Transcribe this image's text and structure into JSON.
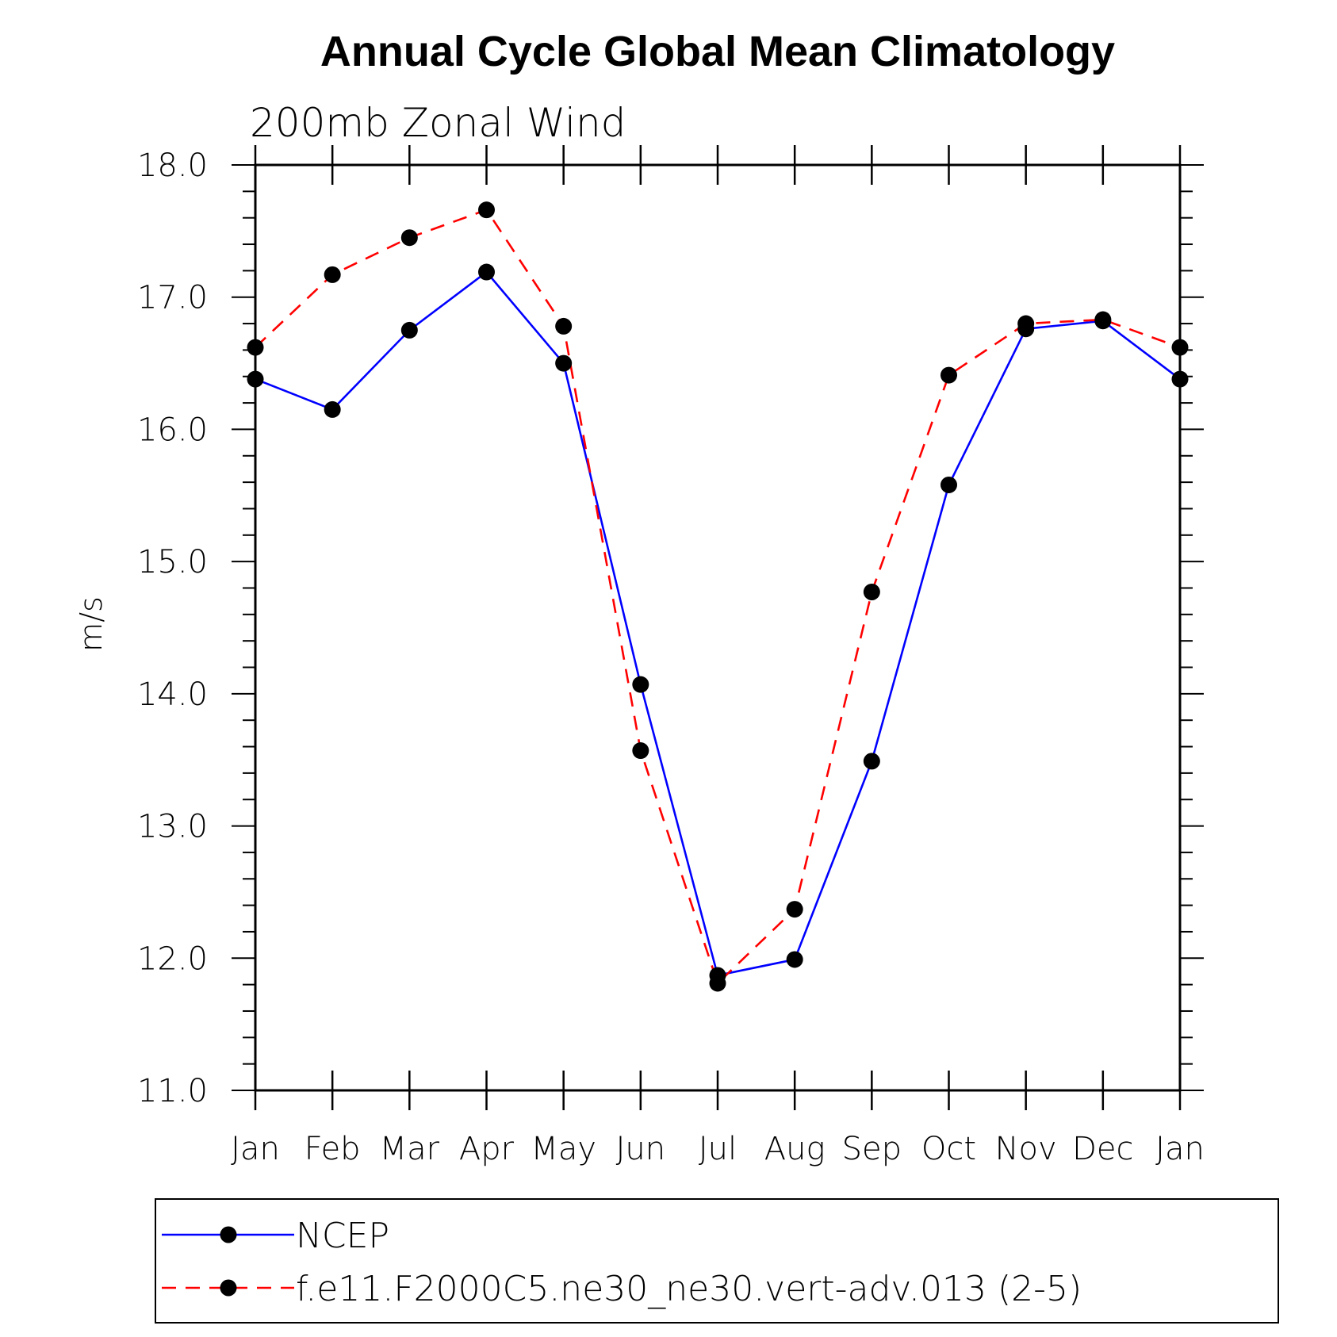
{
  "chart_data": {
    "type": "line",
    "title": "Annual Cycle Global Mean Climatology",
    "subtitle": "200mb Zonal Wind",
    "xlabel": "",
    "ylabel": "m/s",
    "categories": [
      "Jan",
      "Feb",
      "Mar",
      "Apr",
      "May",
      "Jun",
      "Jul",
      "Aug",
      "Sep",
      "Oct",
      "Nov",
      "Dec",
      "Jan"
    ],
    "ylim": [
      11.0,
      18.0
    ],
    "y_ticks": [
      "11.0",
      "12.0",
      "13.0",
      "14.0",
      "15.0",
      "16.0",
      "17.0",
      "18.0"
    ],
    "grid": false,
    "legend_position": "bottom",
    "series": [
      {
        "name": "NCEP",
        "color": "#0000ff",
        "line_style": "solid",
        "marker": "filled-circle",
        "values": [
          16.38,
          16.15,
          16.75,
          17.19,
          16.5,
          14.07,
          11.87,
          11.99,
          13.49,
          15.58,
          16.76,
          16.82,
          16.38
        ]
      },
      {
        "name": "f.e11.F2000C5.ne30_ne30.vert-adv.013 (2-5)",
        "color": "#ff0000",
        "line_style": "dashed",
        "marker": "filled-circle",
        "values": [
          16.62,
          17.17,
          17.45,
          17.66,
          16.78,
          13.57,
          11.81,
          12.37,
          14.77,
          16.41,
          16.8,
          16.83,
          16.62
        ]
      }
    ]
  }
}
